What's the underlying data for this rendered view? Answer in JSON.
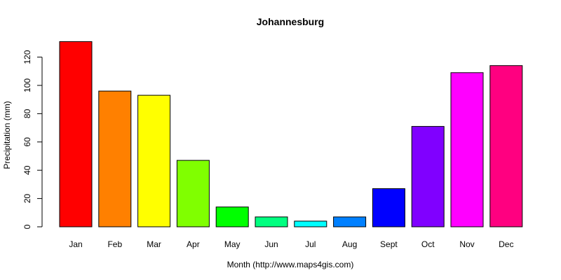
{
  "chart_data": {
    "type": "bar",
    "title": "Johannesburg",
    "xlabel": "Month (http://www.maps4gis.com)",
    "ylabel": "Precipitation (mm)",
    "categories": [
      "Jan",
      "Feb",
      "Mar",
      "Apr",
      "May",
      "Jun",
      "Jul",
      "Aug",
      "Sept",
      "Oct",
      "Nov",
      "Dec"
    ],
    "values": [
      131,
      96,
      93,
      47,
      14,
      7,
      4,
      7,
      27,
      71,
      109,
      114
    ],
    "colors": [
      "#FF0000",
      "#FF8000",
      "#FFFF00",
      "#80FF00",
      "#00FF00",
      "#00FF80",
      "#00FFFF",
      "#0080FF",
      "#0000FF",
      "#8000FF",
      "#FF00FF",
      "#FF0080"
    ],
    "yticks": [
      0,
      20,
      40,
      60,
      80,
      100,
      120
    ],
    "ylim": [
      0,
      131
    ],
    "grid": false,
    "legend": "none"
  }
}
